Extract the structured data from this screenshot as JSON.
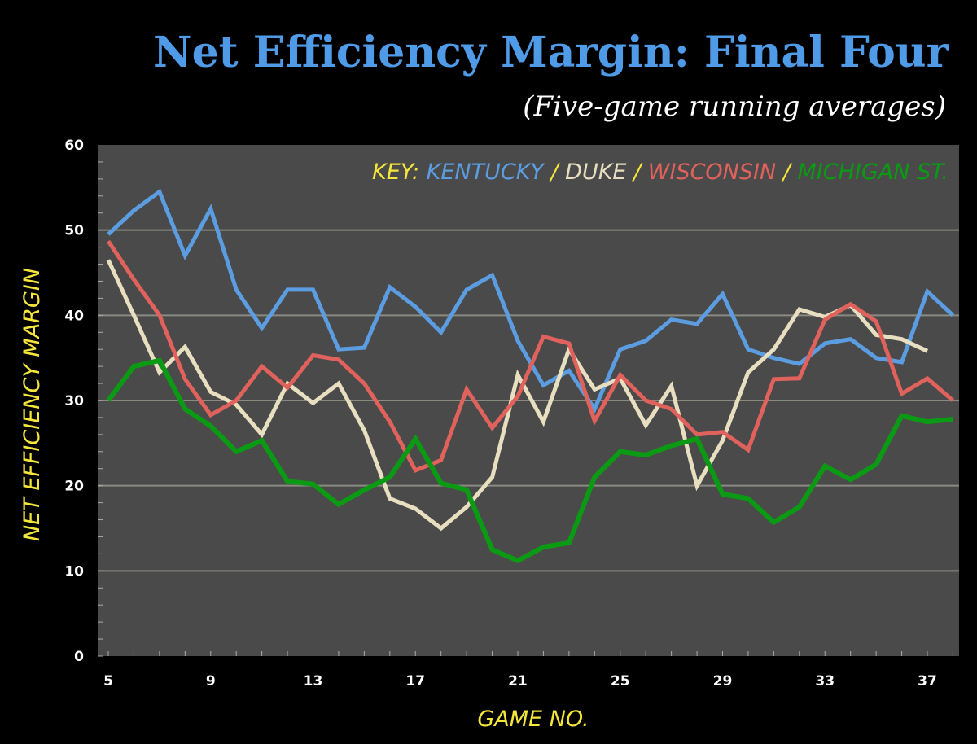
{
  "chart_data": {
    "type": "line",
    "title": "Net Efficiency Margin: Final Four",
    "subtitle": "(Five-game running averages)",
    "xlabel": "GAME NO.",
    "ylabel": "NET EFFICIENCY MARGIN",
    "xlim": [
      5,
      38
    ],
    "ylim": [
      0,
      60
    ],
    "x_ticks": [
      5,
      9,
      13,
      17,
      21,
      25,
      29,
      33,
      37
    ],
    "y_ticks": [
      0,
      10,
      20,
      30,
      40,
      50,
      60
    ],
    "grid": true,
    "legend_position": "top-right",
    "key_label": "KEY:",
    "key_separator": "/",
    "colors": {
      "background": "#000000",
      "plot": "#4a4a4a",
      "title": "#4f9be8",
      "axis_text": "#f5e63c",
      "grid": "#8a8a80"
    },
    "x": [
      5,
      6,
      7,
      8,
      9,
      10,
      11,
      12,
      13,
      14,
      15,
      16,
      17,
      18,
      19,
      20,
      21,
      22,
      23,
      24,
      25,
      26,
      27,
      28,
      29,
      30,
      31,
      32,
      33,
      34,
      35,
      36,
      37,
      38
    ],
    "series": [
      {
        "name": "KENTUCKY",
        "color": "#5b9de0",
        "values": [
          49.5,
          52.3,
          54.5,
          47,
          52.5,
          43,
          38.5,
          43,
          43,
          36,
          36.2,
          43.3,
          41,
          38,
          43,
          44.7,
          37,
          31.8,
          33.5,
          29,
          36,
          37,
          39.5,
          39,
          42.5,
          36,
          35,
          34.3,
          36.7,
          37.2,
          35,
          34.5,
          42.8,
          40
        ]
      },
      {
        "name": "DUKE",
        "color": "#e8dfc0",
        "values": [
          46.5,
          40,
          33.3,
          36.3,
          31,
          29.5,
          26,
          32,
          29.7,
          32,
          26.5,
          18.5,
          17.3,
          15,
          17.5,
          21,
          33,
          27.5,
          36,
          31.3,
          32.6,
          27.1,
          31.7,
          20,
          25.3,
          33.3,
          36,
          40.7,
          39.8,
          41.2,
          37.7,
          37.2,
          35.8,
          null
        ]
      },
      {
        "name": "WISCONSIN",
        "color": "#e0625c",
        "values": [
          48.7,
          44.2,
          40,
          32.5,
          28.3,
          30,
          34,
          31.5,
          35.3,
          34.8,
          32,
          27.5,
          21.8,
          23,
          31.3,
          26.8,
          30.5,
          37.5,
          36.7,
          27.6,
          33,
          30,
          29,
          26,
          26.3,
          24.2,
          32.5,
          32.6,
          39.5,
          41.3,
          39.3,
          30.8,
          32.6,
          30
        ]
      },
      {
        "name": "MICHIGAN ST.",
        "color": "#0a9a14",
        "values": [
          30,
          34,
          34.7,
          29,
          27,
          24,
          25.3,
          20.5,
          20.2,
          17.8,
          19.5,
          21,
          25.5,
          20.3,
          19.5,
          12.5,
          11.2,
          12.8,
          13.3,
          21,
          24,
          23.6,
          24.7,
          25.5,
          19,
          18.5,
          15.7,
          17.5,
          22.3,
          20.7,
          22.5,
          28.2,
          27.5,
          27.8
        ]
      }
    ]
  }
}
